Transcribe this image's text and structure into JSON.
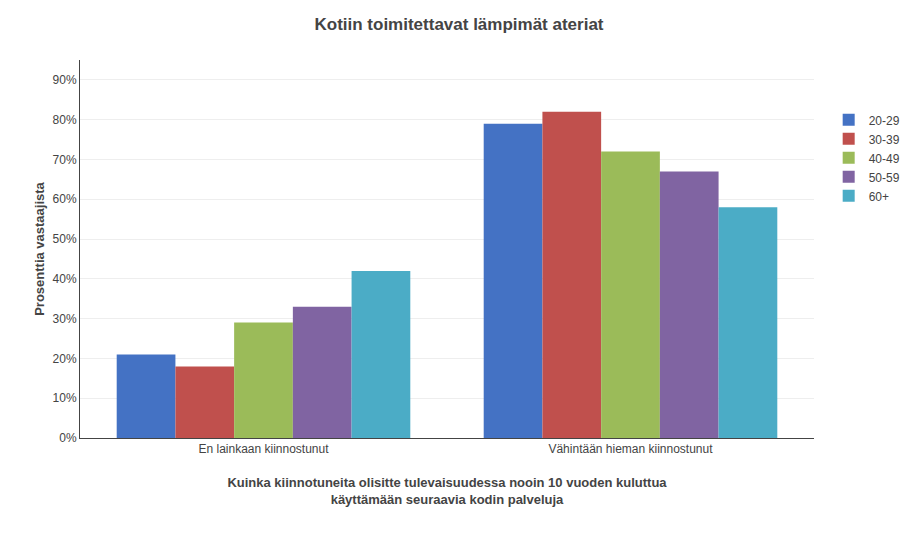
{
  "chart_data": {
    "type": "bar",
    "title": "Kotiin toimitettavat lämpimät ateriat",
    "xlabel": "Kuinka kiinnotuneita olisitte tulevaisuudessa nooin 10 vuoden kuluttua\nkäyttämään seuraavia kodin palveluja",
    "ylabel": "Prosenttia vastaajista",
    "categories": [
      "En lainkaan kiinnostunut",
      "Vähintään hieman kiinnostunut"
    ],
    "series": [
      {
        "name": "20-29",
        "values": [
          21,
          79
        ],
        "color": "#4472C4"
      },
      {
        "name": "30-39",
        "values": [
          18,
          82
        ],
        "color": "#C0504D"
      },
      {
        "name": "40-49",
        "values": [
          29,
          72
        ],
        "color": "#9BBB59"
      },
      {
        "name": "50-59",
        "values": [
          33,
          67
        ],
        "color": "#8064A2"
      },
      {
        "name": "60+",
        "values": [
          42,
          58
        ],
        "color": "#4BACC6"
      }
    ],
    "ylim": [
      0,
      95
    ],
    "yticks": [
      {
        "value": 0,
        "label": "0%"
      },
      {
        "value": 10,
        "label": "10%"
      },
      {
        "value": 20,
        "label": "20%"
      },
      {
        "value": 30,
        "label": "30%"
      },
      {
        "value": 40,
        "label": "40%"
      },
      {
        "value": 50,
        "label": "50%"
      },
      {
        "value": 60,
        "label": "60%"
      },
      {
        "value": 70,
        "label": "70%"
      },
      {
        "value": 80,
        "label": "80%"
      },
      {
        "value": 90,
        "label": "90%"
      }
    ],
    "grid": true,
    "legend": "right"
  }
}
